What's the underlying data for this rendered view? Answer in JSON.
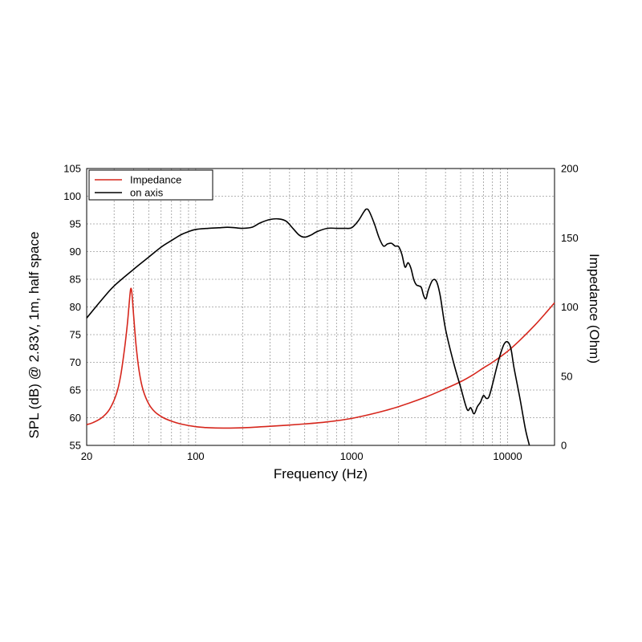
{
  "chart_data": {
    "type": "line",
    "xlabel": "Frequency (Hz)",
    "ylabel": "SPL (dB) @ 2.83V, 1m, half space",
    "y2label": "Impedance (Ohm)",
    "x_scale": "log",
    "xlim": [
      20,
      20000
    ],
    "ylim": [
      55,
      105
    ],
    "y2lim": [
      0,
      200
    ],
    "grid": true,
    "legend_position": "top-left",
    "x_ticks": [
      {
        "value": 20,
        "label": "20"
      },
      {
        "value": 100,
        "label": "100"
      },
      {
        "value": 1000,
        "label": "1000"
      },
      {
        "value": 10000,
        "label": "10000"
      }
    ],
    "y_ticks": [
      {
        "value": 55,
        "label": "55"
      },
      {
        "value": 60,
        "label": "60"
      },
      {
        "value": 65,
        "label": "65"
      },
      {
        "value": 70,
        "label": "70"
      },
      {
        "value": 75,
        "label": "75"
      },
      {
        "value": 80,
        "label": "80"
      },
      {
        "value": 85,
        "label": "85"
      },
      {
        "value": 90,
        "label": "90"
      },
      {
        "value": 95,
        "label": "95"
      },
      {
        "value": 100,
        "label": "100"
      },
      {
        "value": 105,
        "label": "105"
      }
    ],
    "y2_ticks": [
      {
        "value": 0,
        "label": "0"
      },
      {
        "value": 50,
        "label": "50"
      },
      {
        "value": 100,
        "label": "100"
      },
      {
        "value": 150,
        "label": "150"
      },
      {
        "value": 200,
        "label": "200"
      }
    ],
    "series": [
      {
        "name": "Impedance",
        "axis": "right",
        "color": "#d6261c",
        "points": [
          [
            20,
            15
          ],
          [
            22,
            16.5
          ],
          [
            25,
            20
          ],
          [
            28,
            26
          ],
          [
            31,
            37
          ],
          [
            33,
            50
          ],
          [
            35,
            70
          ],
          [
            36.5,
            88
          ],
          [
            37.5,
            103
          ],
          [
            38.3,
            113
          ],
          [
            39,
            110
          ],
          [
            40,
            94
          ],
          [
            41.5,
            72
          ],
          [
            43.5,
            53
          ],
          [
            46,
            40
          ],
          [
            50,
            30
          ],
          [
            55,
            24
          ],
          [
            62,
            20
          ],
          [
            70,
            17.5
          ],
          [
            80,
            15.5
          ],
          [
            100,
            13.5
          ],
          [
            120,
            12.8
          ],
          [
            150,
            12.5
          ],
          [
            200,
            12.7
          ],
          [
            300,
            13.8
          ],
          [
            500,
            15.5
          ],
          [
            700,
            17
          ],
          [
            1000,
            19.5
          ],
          [
            1500,
            24
          ],
          [
            2000,
            28
          ],
          [
            3000,
            35
          ],
          [
            4000,
            41
          ],
          [
            5000,
            46
          ],
          [
            6000,
            51
          ],
          [
            7000,
            56
          ],
          [
            8000,
            60
          ],
          [
            10000,
            68
          ],
          [
            12000,
            76
          ],
          [
            15000,
            87
          ],
          [
            18000,
            97
          ],
          [
            20000,
            103
          ]
        ]
      },
      {
        "name": "on axis",
        "axis": "left",
        "color": "#000000",
        "points": [
          [
            20,
            78
          ],
          [
            25,
            81.3
          ],
          [
            30,
            83.8
          ],
          [
            40,
            86.8
          ],
          [
            50,
            89
          ],
          [
            60,
            90.8
          ],
          [
            70,
            92
          ],
          [
            80,
            93
          ],
          [
            90,
            93.6
          ],
          [
            100,
            94
          ],
          [
            120,
            94.2
          ],
          [
            140,
            94.3
          ],
          [
            160,
            94.4
          ],
          [
            180,
            94.3
          ],
          [
            200,
            94.2
          ],
          [
            230,
            94.4
          ],
          [
            260,
            95.2
          ],
          [
            300,
            95.8
          ],
          [
            340,
            95.9
          ],
          [
            380,
            95.5
          ],
          [
            420,
            94.2
          ],
          [
            460,
            93
          ],
          [
            500,
            92.6
          ],
          [
            550,
            93
          ],
          [
            600,
            93.6
          ],
          [
            700,
            94.2
          ],
          [
            800,
            94.2
          ],
          [
            900,
            94.2
          ],
          [
            1000,
            94.3
          ],
          [
            1100,
            95.5
          ],
          [
            1200,
            97.2
          ],
          [
            1250,
            97.7
          ],
          [
            1300,
            97.2
          ],
          [
            1400,
            95
          ],
          [
            1500,
            92.5
          ],
          [
            1600,
            91
          ],
          [
            1700,
            91.4
          ],
          [
            1800,
            91.5
          ],
          [
            1900,
            91
          ],
          [
            2000,
            90.9
          ],
          [
            2100,
            89.5
          ],
          [
            2200,
            87.2
          ],
          [
            2300,
            88
          ],
          [
            2400,
            87
          ],
          [
            2500,
            85
          ],
          [
            2600,
            84
          ],
          [
            2700,
            83.8
          ],
          [
            2800,
            83.5
          ],
          [
            2900,
            82
          ],
          [
            3000,
            81.5
          ],
          [
            3100,
            83
          ],
          [
            3300,
            84.8
          ],
          [
            3500,
            84.6
          ],
          [
            3700,
            82
          ],
          [
            4000,
            76
          ],
          [
            4500,
            70
          ],
          [
            5000,
            65.5
          ],
          [
            5500,
            61.5
          ],
          [
            5800,
            61.8
          ],
          [
            6100,
            60.7
          ],
          [
            6400,
            62
          ],
          [
            6700,
            62.8
          ],
          [
            7000,
            64
          ],
          [
            7300,
            63.5
          ],
          [
            7600,
            63.8
          ],
          [
            8000,
            66
          ],
          [
            8500,
            69
          ],
          [
            9000,
            71.5
          ],
          [
            9500,
            73.3
          ],
          [
            10000,
            73.7
          ],
          [
            10500,
            72.5
          ],
          [
            11000,
            69
          ],
          [
            12000,
            63.5
          ],
          [
            13000,
            58
          ],
          [
            13800,
            55
          ]
        ]
      }
    ]
  }
}
